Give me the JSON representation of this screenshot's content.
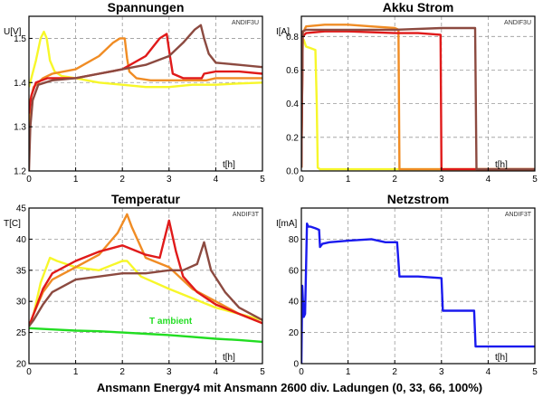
{
  "caption": "Ansmann Energy4 mit Ansmann 2600 div. Ladungen (0, 33, 66, 100%)",
  "colors": {
    "charge0": "#f7f72a",
    "charge33": "#f08c24",
    "charge66": "#e01a1a",
    "charge100": "#8c4a40",
    "netz": "#1a1aee",
    "ambient": "#22dd22",
    "grid": "#999999"
  },
  "chart_data": [
    {
      "type": "line",
      "title": "Spannungen",
      "ylabel": "U[V]",
      "xlabel": "t[h]",
      "tag": "ANDIF3U",
      "xlim": [
        0,
        5
      ],
      "ylim": [
        1.2,
        1.55
      ],
      "xticks": [
        0,
        1,
        2,
        3,
        4,
        5
      ],
      "yticks": [
        1.2,
        1.3,
        1.4,
        1.5
      ],
      "ytick_labels": [
        "1.2",
        "1.3",
        "1.4",
        "1.5"
      ],
      "series": [
        {
          "color_key": "charge0",
          "x": [
            0,
            0.05,
            0.15,
            0.25,
            0.32,
            0.38,
            0.45,
            0.55,
            0.7,
            1,
            1.5,
            2,
            2.5,
            3,
            3.5,
            4,
            4.5,
            5
          ],
          "y": [
            1.39,
            1.41,
            1.45,
            1.5,
            1.515,
            1.5,
            1.45,
            1.425,
            1.415,
            1.41,
            1.4,
            1.395,
            1.39,
            1.39,
            1.395,
            1.395,
            1.398,
            1.4
          ]
        },
        {
          "color_key": "charge33",
          "x": [
            0,
            0.03,
            0.1,
            0.3,
            0.5,
            1,
            1.5,
            1.8,
            1.95,
            2.05,
            2.1,
            2.15,
            2.3,
            2.6,
            3,
            3.5,
            3.8,
            4,
            4.5,
            5
          ],
          "y": [
            1.3,
            1.36,
            1.39,
            1.41,
            1.42,
            1.43,
            1.46,
            1.49,
            1.5,
            1.5,
            1.455,
            1.425,
            1.41,
            1.405,
            1.405,
            1.405,
            1.405,
            1.41,
            1.41,
            1.41
          ]
        },
        {
          "color_key": "charge66",
          "x": [
            0,
            0.05,
            0.15,
            0.4,
            1,
            1.5,
            2,
            2.5,
            2.8,
            2.95,
            3.02,
            3.08,
            3.3,
            3.7,
            3.75,
            4,
            4.5,
            5
          ],
          "y": [
            1.33,
            1.37,
            1.4,
            1.41,
            1.41,
            1.42,
            1.43,
            1.46,
            1.5,
            1.51,
            1.46,
            1.42,
            1.41,
            1.41,
            1.42,
            1.425,
            1.425,
            1.42
          ]
        },
        {
          "color_key": "charge100",
          "x": [
            0,
            0.03,
            0.08,
            0.2,
            0.5,
            1,
            1.5,
            2,
            2.5,
            3,
            3.3,
            3.55,
            3.68,
            3.75,
            3.85,
            4,
            4.5,
            5
          ],
          "y": [
            1.2,
            1.3,
            1.36,
            1.395,
            1.405,
            1.41,
            1.42,
            1.43,
            1.44,
            1.46,
            1.49,
            1.52,
            1.53,
            1.5,
            1.465,
            1.445,
            1.44,
            1.435
          ]
        }
      ]
    },
    {
      "type": "line",
      "title": "Akku Strom",
      "ylabel": "I[A]",
      "xlabel": "t[h]",
      "tag": "ANDIF3U",
      "xlim": [
        0,
        5
      ],
      "ylim": [
        0,
        0.92
      ],
      "xticks": [
        0,
        1,
        2,
        3,
        4,
        5
      ],
      "yticks": [
        0,
        0.2,
        0.4,
        0.6,
        0.8
      ],
      "ytick_labels": [
        "0.0",
        "0.2",
        "0.4",
        "0.6",
        "0.8"
      ],
      "series": [
        {
          "color_key": "charge0",
          "x": [
            0,
            0.02,
            0.05,
            0.1,
            0.2,
            0.3,
            0.33,
            0.35,
            0.4,
            1,
            2,
            3,
            4,
            5
          ],
          "y": [
            0.02,
            0.75,
            0.78,
            0.74,
            0.73,
            0.72,
            0.4,
            0.02,
            0.01,
            0.01,
            0.01,
            0.01,
            0.01,
            0.01
          ]
        },
        {
          "color_key": "charge33",
          "x": [
            0,
            0.03,
            0.1,
            0.5,
            1,
            1.5,
            2,
            2.08,
            2.1,
            2.5,
            3,
            4,
            5
          ],
          "y": [
            0.02,
            0.82,
            0.86,
            0.87,
            0.87,
            0.86,
            0.85,
            0.84,
            0.01,
            0.01,
            0.01,
            0.01,
            0.01
          ]
        },
        {
          "color_key": "charge66",
          "x": [
            0,
            0.03,
            0.1,
            0.5,
            1,
            2,
            2.5,
            2.98,
            3.0,
            3.5,
            4,
            5
          ],
          "y": [
            0.02,
            0.8,
            0.82,
            0.83,
            0.83,
            0.82,
            0.82,
            0.81,
            0.01,
            0.01,
            0.01,
            0.01
          ]
        },
        {
          "color_key": "charge100",
          "x": [
            0,
            0.03,
            0.1,
            0.5,
            1,
            2,
            3,
            3.5,
            3.72,
            3.75,
            4,
            5
          ],
          "y": [
            0.02,
            0.83,
            0.84,
            0.84,
            0.84,
            0.84,
            0.85,
            0.85,
            0.85,
            0.01,
            0.01,
            0.01
          ]
        }
      ]
    },
    {
      "type": "line",
      "title": "Temperatur",
      "ylabel": "T[C]",
      "xlabel": "t[h]",
      "tag": "ANDIF3T",
      "annotation": "T ambient",
      "xlim": [
        0,
        5
      ],
      "ylim": [
        20,
        45
      ],
      "xticks": [
        0,
        1,
        2,
        3,
        4,
        5
      ],
      "yticks": [
        20,
        25,
        30,
        35,
        40,
        45
      ],
      "ytick_labels": [
        "20",
        "25",
        "30",
        "35",
        "40",
        "45"
      ],
      "series": [
        {
          "color_key": "ambient",
          "x": [
            0,
            0.5,
            1,
            1.5,
            2,
            2.5,
            3,
            3.5,
            4,
            4.5,
            5
          ],
          "y": [
            25.7,
            25.5,
            25.3,
            25.2,
            25.0,
            24.8,
            24.6,
            24.3,
            24.0,
            23.8,
            23.5
          ]
        },
        {
          "color_key": "charge0",
          "x": [
            0,
            0.1,
            0.25,
            0.45,
            0.6,
            1,
            1.5,
            2,
            2.1,
            2.4,
            3,
            3.5,
            4,
            4.5,
            5
          ],
          "y": [
            26,
            28,
            33,
            37,
            36.5,
            35.5,
            35,
            36.5,
            36.5,
            34,
            32,
            30.5,
            29,
            28,
            27
          ]
        },
        {
          "color_key": "charge33",
          "x": [
            0,
            0.1,
            0.3,
            0.5,
            1,
            1.5,
            1.9,
            2.1,
            2.2,
            2.5,
            3,
            3.5,
            4,
            4.5,
            5
          ],
          "y": [
            26,
            28,
            31.5,
            33.5,
            35.5,
            37.5,
            41,
            44,
            42,
            37,
            35.5,
            32,
            30,
            28,
            26.5
          ]
        },
        {
          "color_key": "charge66",
          "x": [
            0,
            0.1,
            0.3,
            0.5,
            1,
            1.5,
            2,
            2.5,
            2.8,
            3.0,
            3.15,
            3.3,
            3.6,
            4,
            4.5,
            5
          ],
          "y": [
            26,
            28,
            32,
            34.5,
            36.5,
            38,
            39,
            37.5,
            37,
            43,
            38,
            34,
            31.5,
            29.5,
            28,
            26.5
          ]
        },
        {
          "color_key": "charge100",
          "x": [
            0,
            0.1,
            0.3,
            0.5,
            1,
            1.5,
            2,
            2.5,
            3,
            3.3,
            3.6,
            3.75,
            3.9,
            4.2,
            4.5,
            5
          ],
          "y": [
            26,
            27,
            29.5,
            31.5,
            33.5,
            34,
            34.5,
            34.5,
            35,
            35,
            36,
            39.5,
            35,
            31.5,
            29,
            27
          ]
        }
      ]
    },
    {
      "type": "line",
      "title": "Netzstrom",
      "ylabel": "I[mA]",
      "xlabel": "t[h]",
      "tag": "ANDIF3T",
      "xlim": [
        0,
        5
      ],
      "ylim": [
        0,
        100
      ],
      "xticks": [
        0,
        1,
        2,
        3,
        4,
        5
      ],
      "yticks": [
        0,
        20,
        40,
        60,
        80
      ],
      "ytick_labels": [
        "0",
        "20",
        "40",
        "60",
        "80"
      ],
      "series": [
        {
          "color_key": "netz",
          "x": [
            0,
            0.02,
            0.05,
            0.08,
            0.1,
            0.12,
            0.15,
            0.2,
            0.3,
            0.38,
            0.4,
            0.45,
            0.6,
            1,
            1.5,
            1.8,
            2.05,
            2.1,
            2.5,
            3.0,
            3.03,
            3.5,
            3.7,
            3.73,
            4,
            4.5,
            5
          ],
          "y": [
            0,
            50,
            30,
            32,
            62,
            90,
            88,
            88,
            87,
            86,
            75,
            77,
            78,
            79,
            80,
            78,
            78,
            56,
            56,
            55,
            34,
            34,
            34,
            11,
            11,
            11,
            11
          ]
        }
      ]
    }
  ]
}
